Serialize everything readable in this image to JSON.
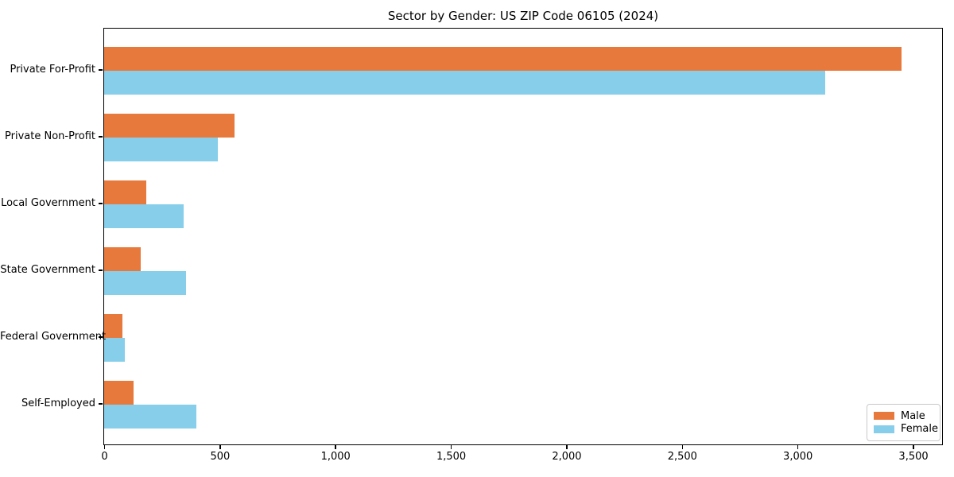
{
  "chart_data": {
    "type": "bar",
    "orientation": "horizontal",
    "title": "Sector by Gender: US ZIP Code 06105 (2024)",
    "categories": [
      "Private For-Profit",
      "Private Non-Profit",
      "Local Government",
      "State Government",
      "Federal Government",
      "Self-Employed"
    ],
    "series": [
      {
        "name": "Male",
        "color": "#E8793D",
        "values": [
          3450,
          565,
          183,
          157,
          80,
          127
        ]
      },
      {
        "name": "Female",
        "color": "#87CEEB",
        "values": [
          3120,
          490,
          345,
          355,
          90,
          400
        ]
      }
    ],
    "xlabel": "",
    "ylabel": "",
    "xlim": [
      0,
      3622
    ],
    "xticks": [
      0,
      500,
      1000,
      1500,
      2000,
      2500,
      3000,
      3500
    ],
    "xtick_labels": [
      "0",
      "500",
      "1,000",
      "1,500",
      "2,000",
      "2,500",
      "3,000",
      "3,500"
    ],
    "grid": false,
    "legend_position": "lower right"
  }
}
